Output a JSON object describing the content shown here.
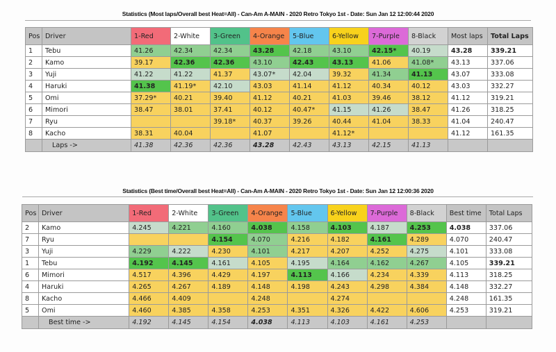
{
  "colors": {
    "red": "#f26b78",
    "white": "#ffffff",
    "green": "#52c28a",
    "orange": "#f6844a",
    "blue": "#63c6ee",
    "yellow": "#f8d21c",
    "purple": "#dc6ad8",
    "black": "#d2d2d2",
    "cell_yellow": "#f8d25e",
    "cell_light": "#c6dccb",
    "cell_medium": "#90cf91",
    "cell_strong": "#54c44c"
  },
  "table1": {
    "title": "Statistics (Most laps/Overall best Heat=All) - Can-Am A-MAIN - 2020 Retro Tokyo 1st - Date: Sun Jan 12 12:00:44 2020",
    "headers": [
      "Pos",
      "Driver",
      "1-Red",
      "2-White",
      "3-Green",
      "4-Orange",
      "5-Blue",
      "6-Yellow",
      "7-Purple",
      "8-Black",
      "Most laps",
      "Total Laps"
    ],
    "rows": [
      {
        "pos": "1",
        "driver": "Tebu",
        "lanes": [
          "41.26",
          "42.34",
          "42.34",
          "43.28",
          "42.18",
          "43.10",
          "42.15*",
          "40.19"
        ],
        "shade": [
          "m",
          "m",
          "m",
          "s",
          "m",
          "m",
          "s",
          "l"
        ],
        "bold": [
          0,
          0,
          0,
          1,
          0,
          0,
          1,
          0
        ],
        "best": "43.28",
        "total": "339.21",
        "best_bold": 1,
        "total_bold": 1
      },
      {
        "pos": "2",
        "driver": "Kamo",
        "lanes": [
          "39.17",
          "42.36",
          "42.36",
          "43.10",
          "42.43",
          "43.13",
          "41.06",
          "41.08*"
        ],
        "shade": [
          "y",
          "s",
          "s",
          "m",
          "s",
          "s",
          "y",
          "m"
        ],
        "bold": [
          0,
          1,
          1,
          0,
          1,
          1,
          0,
          0
        ],
        "best": "43.13",
        "total": "337.06",
        "best_bold": 0,
        "total_bold": 0
      },
      {
        "pos": "3",
        "driver": "Yuji",
        "lanes": [
          "41.22",
          "41.22",
          "41.37",
          "43.07*",
          "42.04",
          "39.32",
          "41.34",
          "41.13"
        ],
        "shade": [
          "l",
          "l",
          "y",
          "l",
          "l",
          "y",
          "m",
          "s"
        ],
        "bold": [
          0,
          0,
          0,
          0,
          0,
          0,
          0,
          1
        ],
        "best": "43.07",
        "total": "333.08",
        "best_bold": 0,
        "total_bold": 0
      },
      {
        "pos": "4",
        "driver": "Haruki",
        "lanes": [
          "41.38",
          "41.19*",
          "42.10",
          "43.03",
          "41.14",
          "41.12",
          "40.34",
          "40.12"
        ],
        "shade": [
          "s",
          "y",
          "l",
          "y",
          "y",
          "y",
          "y",
          "y"
        ],
        "bold": [
          1,
          0,
          0,
          0,
          0,
          0,
          0,
          0
        ],
        "best": "43.03",
        "total": "332.27",
        "best_bold": 0,
        "total_bold": 0
      },
      {
        "pos": "5",
        "driver": "Omi",
        "lanes": [
          "37.29*",
          "40.21",
          "39.40",
          "41.12",
          "40.21",
          "41.03",
          "39.46",
          "38.12"
        ],
        "shade": [
          "y",
          "y",
          "y",
          "y",
          "y",
          "y",
          "y",
          "y"
        ],
        "bold": [
          0,
          0,
          0,
          0,
          0,
          0,
          0,
          0
        ],
        "best": "41.12",
        "total": "319.21",
        "best_bold": 0,
        "total_bold": 0
      },
      {
        "pos": "6",
        "driver": "Mimori",
        "lanes": [
          "38.47",
          "38.01",
          "37.41",
          "40.12",
          "40.47*",
          "41.15",
          "41.26",
          "38.47"
        ],
        "shade": [
          "y",
          "y",
          "y",
          "y",
          "y",
          "l",
          "l",
          "y"
        ],
        "bold": [
          0,
          0,
          0,
          0,
          0,
          0,
          0,
          0
        ],
        "best": "41.26",
        "total": "318.25",
        "best_bold": 0,
        "total_bold": 0
      },
      {
        "pos": "7",
        "driver": "Ryu",
        "lanes": [
          "",
          "",
          "39.18*",
          "40.37",
          "39.26",
          "40.44",
          "41.04",
          "38.33"
        ],
        "shade": [
          "y",
          "y",
          "y",
          "y",
          "y",
          "y",
          "y",
          "y"
        ],
        "bold": [
          0,
          0,
          0,
          0,
          0,
          0,
          0,
          0
        ],
        "best": "41.04",
        "total": "240.47",
        "best_bold": 0,
        "total_bold": 0
      },
      {
        "pos": "8",
        "driver": "Kacho",
        "lanes": [
          "38.31",
          "40.04",
          "",
          "41.07",
          "",
          "41.12*",
          "",
          ""
        ],
        "shade": [
          "y",
          "y",
          "y",
          "y",
          "y",
          "y",
          "y",
          "y"
        ],
        "bold": [
          0,
          0,
          0,
          0,
          0,
          0,
          0,
          0
        ],
        "best": "41.12",
        "total": "161.35",
        "best_bold": 0,
        "total_bold": 0
      }
    ],
    "footer_label": "Laps ->",
    "footer": [
      "41.38",
      "42.36",
      "42.36",
      "43.28",
      "42.43",
      "43.13",
      "42.15",
      "41.13"
    ]
  },
  "table2": {
    "title": "Statistics (Best time/Overall best Heat=All) - Can-Am A-MAIN - 2020 Retro Tokyo 1st - Date: Sun Jan 12 12:00:36 2020",
    "headers": [
      "Pos",
      "Driver",
      "1-Red",
      "2-White",
      "3-Green",
      "4-Orange",
      "5-Blue",
      "6-Yellow",
      "7-Purple",
      "8-Black",
      "Best time",
      "Total Laps"
    ],
    "rows": [
      {
        "pos": "2",
        "driver": "Kamo",
        "lanes": [
          "4.245",
          "4.221",
          "4.160",
          "4.038",
          "4.158",
          "4.103",
          "4.187",
          "4.253"
        ],
        "shade": [
          "l",
          "m",
          "m",
          "s",
          "m",
          "s",
          "l",
          "s"
        ],
        "bold": [
          0,
          0,
          0,
          1,
          0,
          1,
          0,
          1
        ],
        "best": "4.038",
        "total": "337.06",
        "best_bold": 1,
        "total_bold": 0
      },
      {
        "pos": "7",
        "driver": "Ryu",
        "lanes": [
          "",
          "",
          "4.154",
          "4.070",
          "4.216",
          "4.182",
          "4.161",
          "4.289"
        ],
        "shade": [
          "y",
          "y",
          "s",
          "m",
          "y",
          "y",
          "s",
          "y"
        ],
        "bold": [
          0,
          0,
          1,
          0,
          0,
          0,
          1,
          0
        ],
        "best": "4.070",
        "total": "240.47",
        "best_bold": 0,
        "total_bold": 0
      },
      {
        "pos": "3",
        "driver": "Yuji",
        "lanes": [
          "4.229",
          "4.222",
          "4.230",
          "4.101",
          "4.217",
          "4.207",
          "4.252",
          "4.275"
        ],
        "shade": [
          "m",
          "l",
          "y",
          "m",
          "y",
          "y",
          "y",
          "l"
        ],
        "bold": [
          0,
          0,
          0,
          0,
          0,
          0,
          0,
          0
        ],
        "best": "4.101",
        "total": "333.08",
        "best_bold": 0,
        "total_bold": 0
      },
      {
        "pos": "1",
        "driver": "Tebu",
        "lanes": [
          "4.192",
          "4.145",
          "4.161",
          "4.105",
          "4.195",
          "4.164",
          "4.162",
          "4.267"
        ],
        "shade": [
          "s",
          "s",
          "l",
          "y",
          "l",
          "m",
          "m",
          "m"
        ],
        "bold": [
          1,
          1,
          0,
          0,
          0,
          0,
          0,
          0
        ],
        "best": "4.105",
        "total": "339.21",
        "best_bold": 0,
        "total_bold": 1
      },
      {
        "pos": "6",
        "driver": "Mimori",
        "lanes": [
          "4.517",
          "4.396",
          "4.429",
          "4.197",
          "4.113",
          "4.166",
          "4.234",
          "4.339"
        ],
        "shade": [
          "y",
          "y",
          "y",
          "y",
          "s",
          "l",
          "y",
          "y"
        ],
        "bold": [
          0,
          0,
          0,
          0,
          1,
          0,
          0,
          0
        ],
        "best": "4.113",
        "total": "318.25",
        "best_bold": 0,
        "total_bold": 0
      },
      {
        "pos": "4",
        "driver": "Haruki",
        "lanes": [
          "4.265",
          "4.267",
          "4.189",
          "4.148",
          "4.198",
          "4.243",
          "4.298",
          "4.384"
        ],
        "shade": [
          "y",
          "y",
          "y",
          "y",
          "y",
          "y",
          "y",
          "y"
        ],
        "bold": [
          0,
          0,
          0,
          0,
          0,
          0,
          0,
          0
        ],
        "best": "4.148",
        "total": "332.27",
        "best_bold": 0,
        "total_bold": 0
      },
      {
        "pos": "8",
        "driver": "Kacho",
        "lanes": [
          "4.466",
          "4.409",
          "",
          "4.248",
          "",
          "4.274",
          "",
          ""
        ],
        "shade": [
          "y",
          "y",
          "y",
          "y",
          "y",
          "y",
          "y",
          "y"
        ],
        "bold": [
          0,
          0,
          0,
          0,
          0,
          0,
          0,
          0
        ],
        "best": "4.248",
        "total": "161.35",
        "best_bold": 0,
        "total_bold": 0
      },
      {
        "pos": "5",
        "driver": "Omi",
        "lanes": [
          "4.460",
          "4.385",
          "4.358",
          "4.253",
          "4.351",
          "4.326",
          "4.422",
          "4.606"
        ],
        "shade": [
          "y",
          "y",
          "y",
          "y",
          "y",
          "y",
          "y",
          "y"
        ],
        "bold": [
          0,
          0,
          0,
          0,
          0,
          0,
          0,
          0
        ],
        "best": "4.253",
        "total": "319.21",
        "best_bold": 0,
        "total_bold": 0
      }
    ],
    "footer_label": "Best time ->",
    "footer": [
      "4.192",
      "4.145",
      "4.154",
      "4.038",
      "4.113",
      "4.103",
      "4.161",
      "4.253"
    ]
  }
}
